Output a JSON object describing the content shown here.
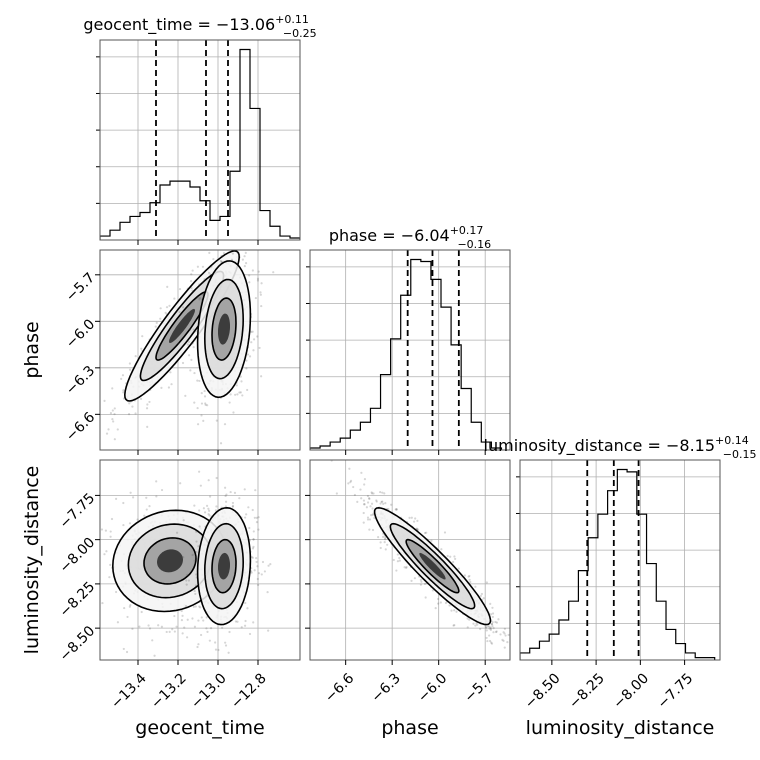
{
  "chart_data": {
    "type": "corner",
    "parameters": [
      "geocent_time",
      "phase",
      "luminosity_distance"
    ],
    "axis_labels": [
      "geocent_time",
      "phase",
      "luminosity_distance"
    ],
    "ranges": {
      "geocent_time": [
        -13.59,
        -12.59
      ],
      "phase": [
        -6.83,
        -5.54
      ],
      "luminosity_distance": [
        -8.68,
        -7.55
      ]
    },
    "ticks": {
      "geocent_time": [
        -13.4,
        -13.2,
        -13.0,
        -12.8
      ],
      "phase": [
        -6.6,
        -6.3,
        -6.0,
        -5.7
      ],
      "luminosity_distance": [
        -8.5,
        -8.25,
        -8.0,
        -7.75
      ]
    },
    "tick_labels": {
      "geocent_time": [
        "−13.4",
        "−13.2",
        "−13.0",
        "−12.8"
      ],
      "phase": [
        "−6.6",
        "−6.3",
        "−6.0",
        "−5.7"
      ],
      "luminosity_distance": [
        "−8.50",
        "−8.25",
        "−8.00",
        "−7.75"
      ]
    },
    "titles": [
      {
        "text": "geocent_time = −13.06",
        "sup": "+0.11",
        "sub": "−0.25"
      },
      {
        "text": "phase = −6.04",
        "sup": "+0.17",
        "sub": "−0.16"
      },
      {
        "text": "luminosity_distance = −8.15",
        "sup": "+0.14",
        "sub": "−0.15"
      }
    ],
    "quantiles": {
      "geocent_time": [
        -13.31,
        -13.06,
        -12.95
      ],
      "phase": [
        -6.2,
        -6.04,
        -5.87
      ],
      "luminosity_distance": [
        -8.3,
        -8.15,
        -8.01
      ]
    },
    "histograms": {
      "geocent_time": {
        "edges": [
          -13.59,
          -13.54,
          -13.49,
          -13.44,
          -13.39,
          -13.34,
          -13.29,
          -13.24,
          -13.19,
          -13.14,
          -13.09,
          -13.04,
          -12.99,
          -12.94,
          -12.89,
          -12.84,
          -12.79,
          -12.74,
          -12.69,
          -12.64,
          -12.59
        ],
        "counts": [
          2,
          5,
          9,
          12,
          14,
          19,
          28,
          30,
          30,
          27,
          20,
          10,
          12,
          35,
          97,
          67,
          15,
          7,
          2,
          1
        ]
      },
      "phase": {
        "edges": [
          -6.83,
          -6.765,
          -6.7,
          -6.635,
          -6.57,
          -6.505,
          -6.44,
          -6.375,
          -6.31,
          -6.245,
          -6.18,
          -6.115,
          -6.05,
          -5.985,
          -5.92,
          -5.855,
          -5.79,
          -5.725,
          -5.66,
          -5.595
        ],
        "counts": [
          1,
          2,
          4,
          6,
          10,
          14,
          21,
          38,
          56,
          78,
          96,
          95,
          86,
          72,
          53,
          31,
          14,
          4,
          1
        ]
      },
      "luminosity_distance": {
        "edges": [
          -8.68,
          -8.625,
          -8.57,
          -8.515,
          -8.46,
          -8.405,
          -8.35,
          -8.295,
          -8.24,
          -8.185,
          -8.13,
          -8.075,
          -8.02,
          -7.965,
          -7.91,
          -7.855,
          -7.8,
          -7.745,
          -7.69,
          -7.635,
          -7.58
        ],
        "counts": [
          3,
          5,
          8,
          11,
          17,
          25,
          38,
          52,
          62,
          72,
          81,
          80,
          62,
          41,
          25,
          13,
          7,
          3,
          1,
          1
        ]
      }
    },
    "joint_modes": {
      "geocent_time|phase": [
        {
          "cx": -13.18,
          "cy": -6.03,
          "sx": 0.13,
          "sy": 0.22,
          "rho": 0.92,
          "weight": 0.5
        },
        {
          "cx": -12.97,
          "cy": -6.05,
          "sx": 0.06,
          "sy": 0.2,
          "rho": 0.2,
          "weight": 0.5
        }
      ],
      "geocent_time|luminosity_distance": [
        {
          "cx": -13.24,
          "cy": -8.12,
          "sx": 0.13,
          "sy": 0.13,
          "rho": 0.1,
          "weight": 0.5
        },
        {
          "cx": -12.97,
          "cy": -8.15,
          "sx": 0.06,
          "sy": 0.15,
          "rho": 0.1,
          "weight": 0.5
        }
      ],
      "phase|luminosity_distance": [
        {
          "cx": -6.04,
          "cy": -8.15,
          "sx": 0.17,
          "sy": 0.15,
          "rho": -0.93,
          "weight": 1.0
        }
      ]
    },
    "grid": true,
    "legend": "none"
  }
}
